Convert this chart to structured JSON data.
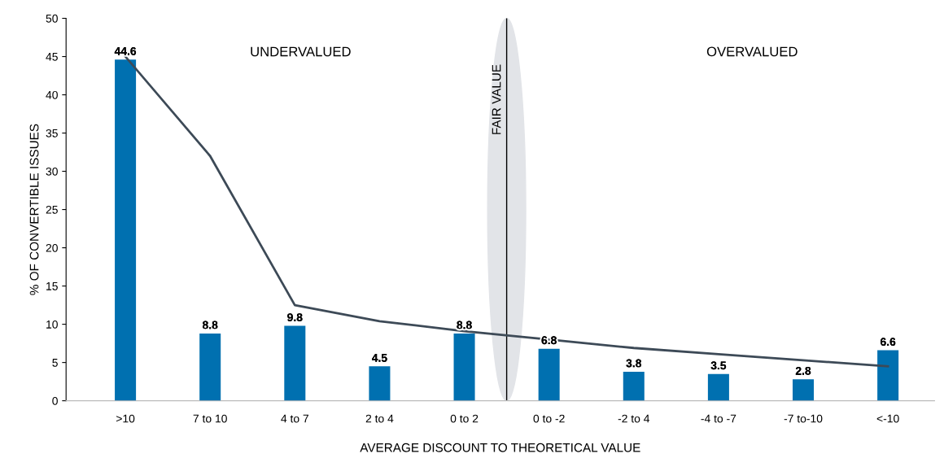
{
  "chart_data": {
    "type": "bar",
    "xlabel": "AVERAGE DISCOUNT TO THEORETICAL VALUE",
    "ylabel": "% OF CONVERTIBLE ISSUES",
    "categories": [
      ">10",
      "7 to 10",
      "4 to 7",
      "2 to 4",
      "0 to 2",
      "0 to -2",
      "-2 to 4",
      "-4 to -7",
      "-7 to-10",
      "<-10"
    ],
    "series": [
      {
        "color": "#0070b0",
        "values": [
          44.6,
          8.8,
          9.8,
          4.5,
          8.8,
          6.8,
          3.8,
          3.5,
          2.8,
          6.6
        ],
        "value_labels": [
          "44.6",
          "8.8",
          "9.8",
          "4.5",
          "8.8",
          "6.8",
          "3.8",
          "3.5",
          "2.8",
          "6.6"
        ]
      },
      {
        "type": "line",
        "color": "#3d4a57",
        "values": [
          45.0,
          32.0,
          12.5,
          10.4,
          9.1,
          8.0,
          6.9,
          6.1,
          5.3,
          4.5
        ]
      }
    ],
    "ylim": [
      0,
      50
    ],
    "yticks": [
      0,
      5,
      10,
      15,
      20,
      25,
      30,
      35,
      40,
      45,
      50
    ],
    "grid": false,
    "annotations": [
      "UNDERVALUED",
      "FAIR VALUE",
      "OVERVALUED"
    ]
  }
}
